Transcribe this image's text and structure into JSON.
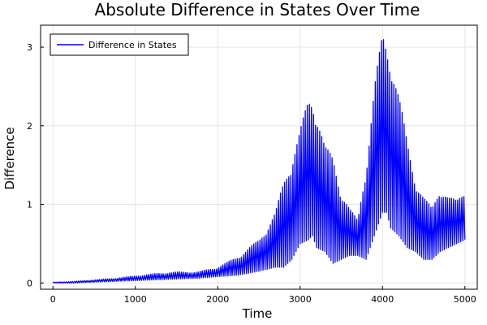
{
  "chart_data": {
    "type": "line",
    "title": "Absolute Difference in States Over Time",
    "xlabel": "Time",
    "ylabel": "Difference",
    "xlim": [
      -150,
      5150
    ],
    "ylim": [
      -0.08,
      3.28
    ],
    "xticks": [
      0,
      1000,
      2000,
      3000,
      4000,
      5000
    ],
    "yticks": [
      0,
      1,
      2,
      3
    ],
    "grid": true,
    "legend_position": "top-left",
    "series": [
      {
        "name": "Difference in States",
        "color": "#0000ff",
        "oscillation_period": 25,
        "envelope_upper": [
          [
            0,
            0.01
          ],
          [
            250,
            0.02
          ],
          [
            500,
            0.04
          ],
          [
            750,
            0.06
          ],
          [
            1000,
            0.09
          ],
          [
            1250,
            0.12
          ],
          [
            1500,
            0.14
          ],
          [
            1750,
            0.14
          ],
          [
            2000,
            0.2
          ],
          [
            2250,
            0.34
          ],
          [
            2500,
            0.55
          ],
          [
            2700,
            0.9
          ],
          [
            2800,
            1.3
          ],
          [
            2900,
            1.65
          ],
          [
            3000,
            1.95
          ],
          [
            3100,
            2.35
          ],
          [
            3150,
            2.4
          ],
          [
            3200,
            2.3
          ],
          [
            3300,
            1.75
          ],
          [
            3400,
            1.6
          ],
          [
            3500,
            1.2
          ],
          [
            3600,
            0.95
          ],
          [
            3700,
            0.8
          ],
          [
            3800,
            1.55
          ],
          [
            3900,
            2.5
          ],
          [
            4000,
            3.2
          ],
          [
            4050,
            3.1
          ],
          [
            4100,
            3.0
          ],
          [
            4200,
            2.4
          ],
          [
            4300,
            1.8
          ],
          [
            4400,
            1.35
          ],
          [
            4500,
            1.1
          ],
          [
            4600,
            0.95
          ],
          [
            4700,
            1.25
          ],
          [
            4800,
            1.1
          ],
          [
            4900,
            1.05
          ],
          [
            5000,
            1.2
          ]
        ],
        "envelope_lower": [
          [
            0,
            0.0
          ],
          [
            250,
            0.0
          ],
          [
            500,
            0.01
          ],
          [
            750,
            0.02
          ],
          [
            1000,
            0.03
          ],
          [
            1250,
            0.04
          ],
          [
            1500,
            0.05
          ],
          [
            1750,
            0.06
          ],
          [
            2000,
            0.08
          ],
          [
            2250,
            0.1
          ],
          [
            2500,
            0.15
          ],
          [
            2700,
            0.2
          ],
          [
            2800,
            0.2
          ],
          [
            2900,
            0.3
          ],
          [
            3000,
            0.5
          ],
          [
            3100,
            0.55
          ],
          [
            3150,
            0.6
          ],
          [
            3200,
            0.45
          ],
          [
            3300,
            0.4
          ],
          [
            3400,
            0.25
          ],
          [
            3500,
            0.3
          ],
          [
            3600,
            0.35
          ],
          [
            3700,
            0.35
          ],
          [
            3800,
            0.3
          ],
          [
            3900,
            0.6
          ],
          [
            4000,
            0.9
          ],
          [
            4050,
            0.9
          ],
          [
            4100,
            0.7
          ],
          [
            4200,
            0.6
          ],
          [
            4300,
            0.45
          ],
          [
            4400,
            0.4
          ],
          [
            4500,
            0.3
          ],
          [
            4600,
            0.3
          ],
          [
            4700,
            0.4
          ],
          [
            4800,
            0.45
          ],
          [
            4900,
            0.5
          ],
          [
            5000,
            0.55
          ]
        ]
      }
    ]
  }
}
